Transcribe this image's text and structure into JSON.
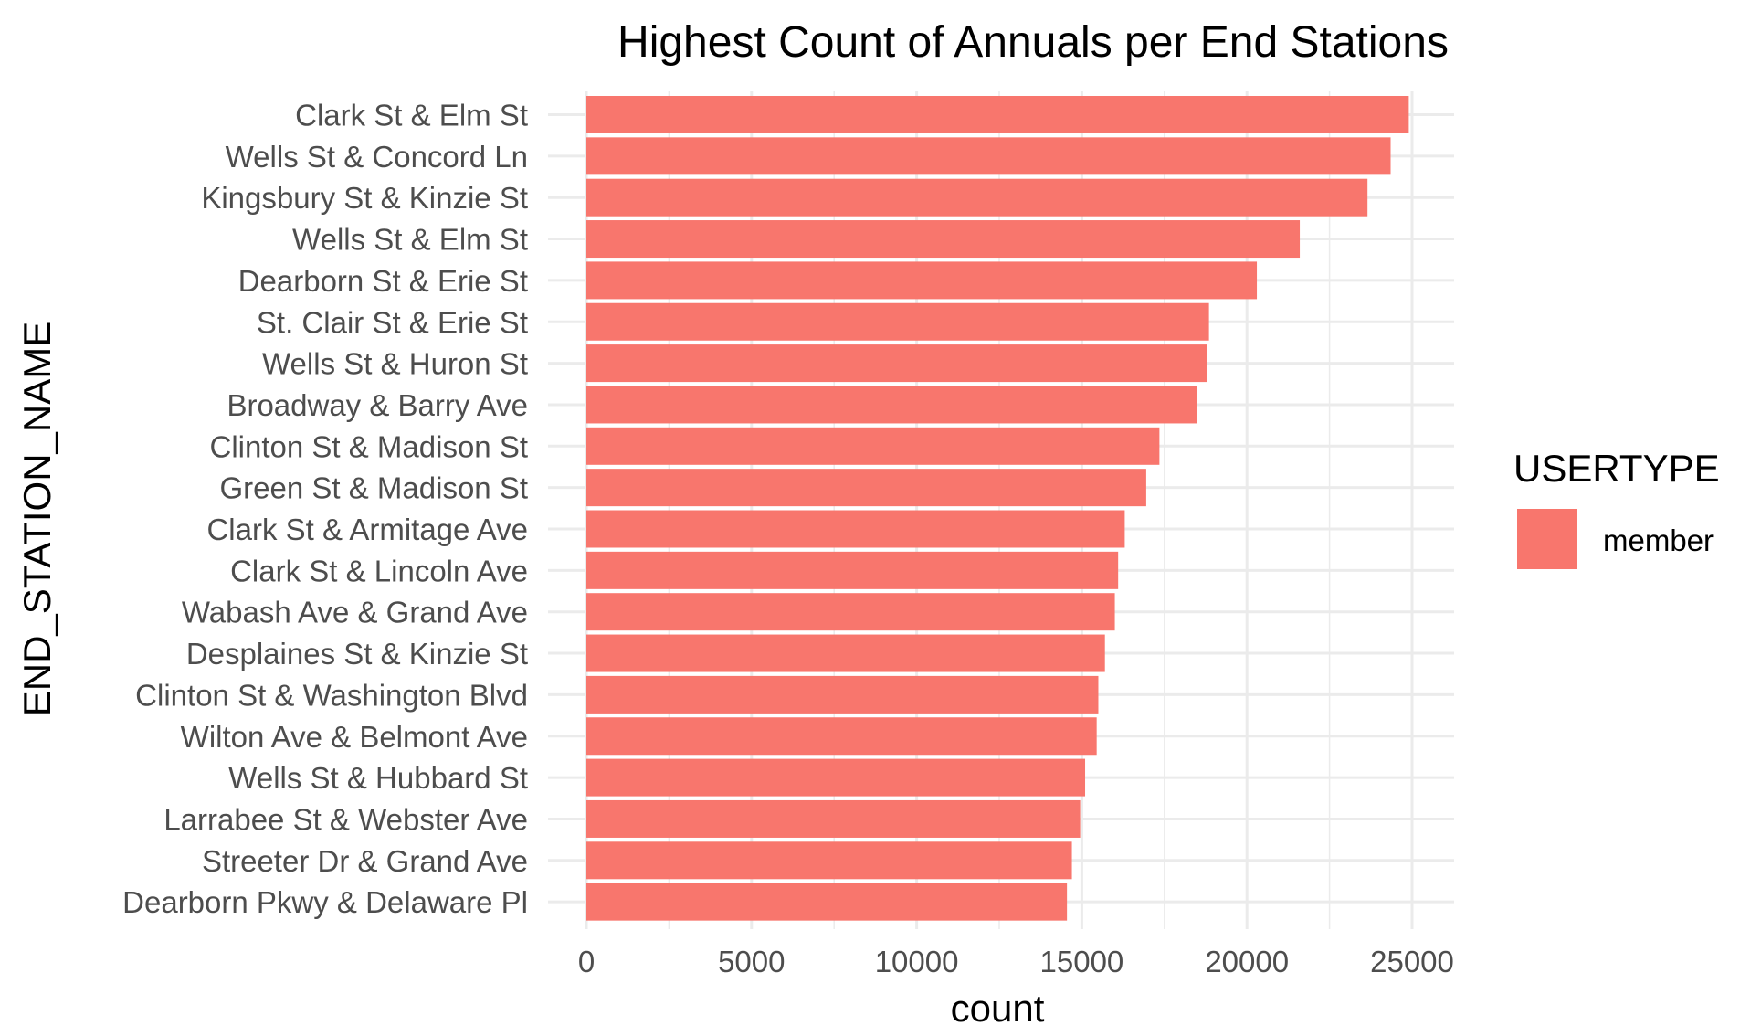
{
  "chart_data": {
    "type": "bar",
    "orientation": "horizontal",
    "title": "Highest Count of Annuals per End Stations",
    "xlabel": "count",
    "ylabel": "END_STATION_NAME",
    "xlim": [
      0,
      26000
    ],
    "xticks": [
      0,
      5000,
      10000,
      15000,
      20000,
      25000
    ],
    "grid": true,
    "legend": {
      "title": "USERTYPE",
      "position": "right",
      "entries": [
        {
          "label": "member",
          "color": "#F8766D"
        }
      ]
    },
    "bar_color": "#F8766D",
    "categories": [
      "Clark St & Elm St",
      "Wells St & Concord Ln",
      "Kingsbury St & Kinzie St",
      "Wells St & Elm St",
      "Dearborn St & Erie St",
      "St. Clair St & Erie St",
      "Wells St & Huron St",
      "Broadway & Barry Ave",
      "Clinton St & Madison St",
      "Green St & Madison St",
      "Clark St & Armitage Ave",
      "Clark St & Lincoln Ave",
      "Wabash Ave & Grand Ave",
      "Desplaines St & Kinzie St",
      "Clinton St & Washington Blvd",
      "Wilton Ave & Belmont Ave",
      "Wells St & Hubbard St",
      "Larrabee St & Webster Ave",
      "Streeter Dr & Grand Ave",
      "Dearborn Pkwy & Delaware Pl"
    ],
    "series": [
      {
        "name": "member",
        "values": [
          24900,
          24350,
          23650,
          21600,
          20300,
          18850,
          18800,
          18500,
          17350,
          16950,
          16300,
          16100,
          16000,
          15700,
          15500,
          15450,
          15100,
          14950,
          14700,
          14550
        ]
      }
    ]
  }
}
